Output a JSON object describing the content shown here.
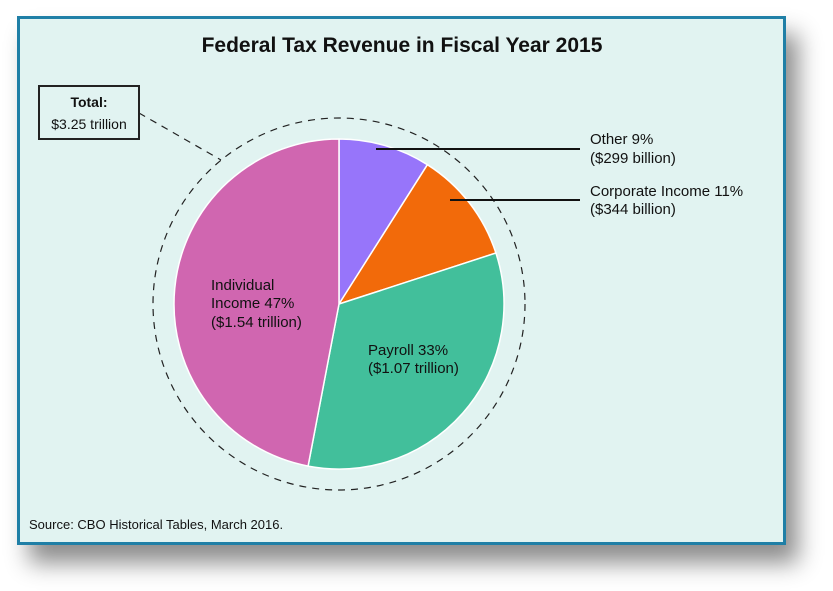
{
  "chart_data": {
    "type": "pie",
    "title": "Federal Tax Revenue in Fiscal Year 2015",
    "total_label": "Total:",
    "total_value": "$3.25 trillion",
    "source": "Source: CBO Historical Tables, March 2016.",
    "slices": [
      {
        "name": "Other",
        "percent": 9,
        "value_text": "($299 billion)",
        "label_line1": "Other 9%",
        "color": "#9775fa"
      },
      {
        "name": "Corporate Income",
        "percent": 11,
        "value_text": "($344 billion)",
        "label_line1": "Corporate Income 11%",
        "color": "#f26a0a"
      },
      {
        "name": "Payroll",
        "percent": 33,
        "value_text": "($1.07 trillion)",
        "label_line1": "Payroll 33%",
        "color": "#42bf9b"
      },
      {
        "name": "Individual Income",
        "percent": 47,
        "value_text": "($1.54 trillion)",
        "label_line1": "Individual",
        "label_line2": "Income 47%",
        "color": "#d066b0"
      }
    ]
  }
}
